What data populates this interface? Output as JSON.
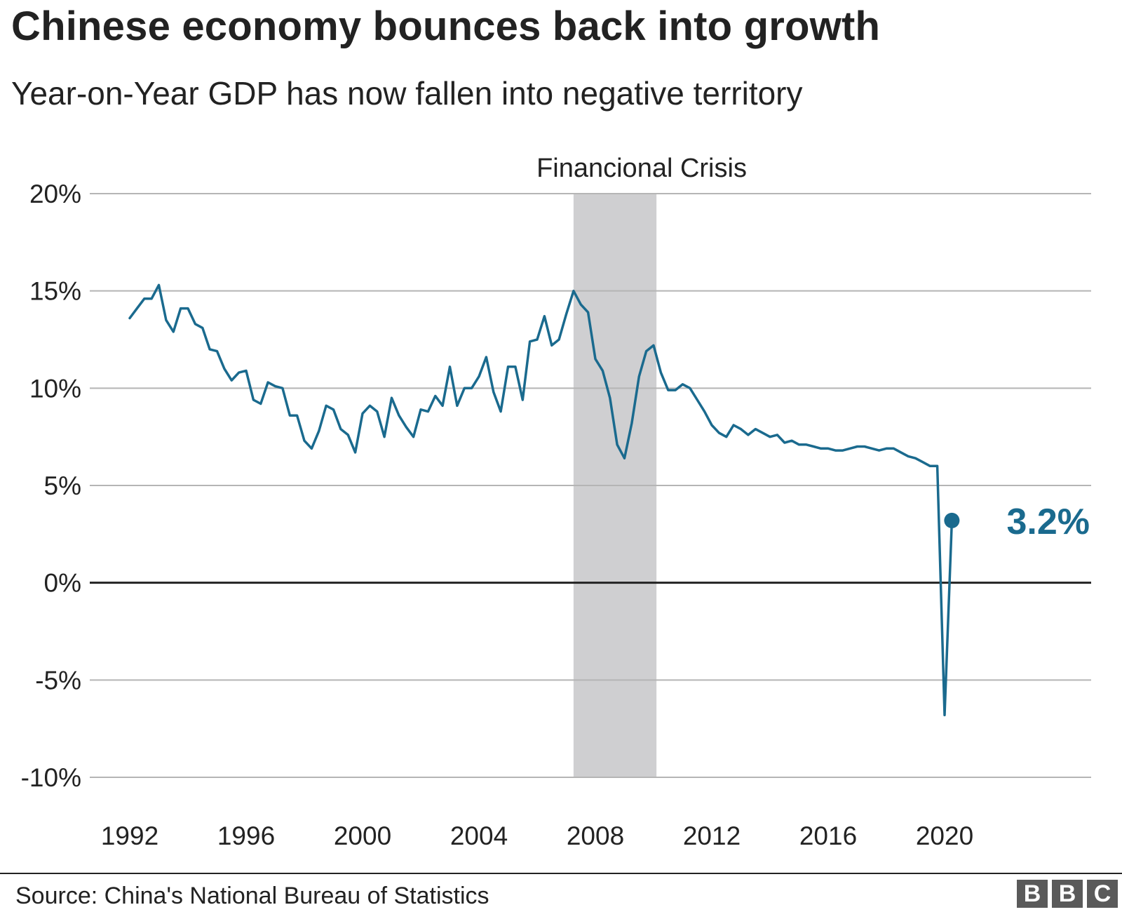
{
  "header": {
    "title": "Chinese economy bounces back into growth",
    "subtitle": "Year-on-Year GDP has now fallen into negative territory"
  },
  "footer": {
    "source": "Source: China's National Bureau of Statistics",
    "logo_letters": [
      "B",
      "B",
      "C"
    ]
  },
  "colors": {
    "line": "#1a6a8e",
    "grid": "#b5b5b5",
    "zero_line": "#222222",
    "band": "#cfcfd1",
    "text": "#222222"
  },
  "chart_data": {
    "type": "line",
    "title": "Chinese economy bounces back into growth",
    "subtitle": "Year-on-Year GDP has now fallen into negative territory",
    "xlabel": "",
    "ylabel": "",
    "ylim": [
      -10,
      20
    ],
    "xlim": [
      1991.25,
      2024.5
    ],
    "grid": true,
    "yticks": [
      20,
      15,
      10,
      5,
      0,
      -5,
      -10
    ],
    "ytick_labels": [
      "20%",
      "15%",
      "10%",
      "5%",
      "0%",
      "-5%",
      "-10%"
    ],
    "xticks": [
      1992,
      1996,
      2000,
      2004,
      2008,
      2012,
      2016,
      2020
    ],
    "xtick_labels": [
      "1992",
      "1996",
      "2000",
      "2004",
      "2008",
      "2012",
      "2016",
      "2020"
    ],
    "shaded_region": {
      "label": "Financional Crisis",
      "start": 2007.25,
      "end": 2010.1
    },
    "last_point_label": "3.2%",
    "series": [
      {
        "name": "Year-on-Year GDP growth",
        "x": [
          1992.0,
          1992.25,
          1992.5,
          1992.75,
          1993.0,
          1993.25,
          1993.5,
          1993.75,
          1994.0,
          1994.25,
          1994.5,
          1994.75,
          1995.0,
          1995.25,
          1995.5,
          1995.75,
          1996.0,
          1996.25,
          1996.5,
          1996.75,
          1997.0,
          1997.25,
          1997.5,
          1997.75,
          1998.0,
          1998.25,
          1998.5,
          1998.75,
          1999.0,
          1999.25,
          1999.5,
          1999.75,
          2000.0,
          2000.25,
          2000.5,
          2000.75,
          2001.0,
          2001.25,
          2001.5,
          2001.75,
          2002.0,
          2002.25,
          2002.5,
          2002.75,
          2003.0,
          2003.25,
          2003.5,
          2003.75,
          2004.0,
          2004.25,
          2004.5,
          2004.75,
          2005.0,
          2005.25,
          2005.5,
          2005.75,
          2006.0,
          2006.25,
          2006.5,
          2006.75,
          2007.0,
          2007.25,
          2007.5,
          2007.75,
          2008.0,
          2008.25,
          2008.5,
          2008.75,
          2009.0,
          2009.25,
          2009.5,
          2009.75,
          2010.0,
          2010.25,
          2010.5,
          2010.75,
          2011.0,
          2011.25,
          2011.5,
          2011.75,
          2012.0,
          2012.25,
          2012.5,
          2012.75,
          2013.0,
          2013.25,
          2013.5,
          2013.75,
          2014.0,
          2014.25,
          2014.5,
          2014.75,
          2015.0,
          2015.25,
          2015.5,
          2015.75,
          2016.0,
          2016.25,
          2016.5,
          2016.75,
          2017.0,
          2017.25,
          2017.5,
          2017.75,
          2018.0,
          2018.25,
          2018.5,
          2018.75,
          2019.0,
          2019.25,
          2019.5,
          2019.75,
          2020.0,
          2020.25
        ],
        "values": [
          13.6,
          14.1,
          14.6,
          14.6,
          15.3,
          13.5,
          12.9,
          14.1,
          14.1,
          13.3,
          13.1,
          12.0,
          11.9,
          11.0,
          10.4,
          10.8,
          10.9,
          9.4,
          9.2,
          10.3,
          10.1,
          10.0,
          8.6,
          8.6,
          7.3,
          6.9,
          7.8,
          9.1,
          8.9,
          7.9,
          7.6,
          6.7,
          8.7,
          9.1,
          8.8,
          7.5,
          9.5,
          8.6,
          8.0,
          7.5,
          8.9,
          8.8,
          9.6,
          9.1,
          11.1,
          9.1,
          10.0,
          10.0,
          10.6,
          11.6,
          9.8,
          8.8,
          11.1,
          11.1,
          9.4,
          12.4,
          12.5,
          13.7,
          12.2,
          12.5,
          13.8,
          15.0,
          14.3,
          13.9,
          11.5,
          10.9,
          9.5,
          7.1,
          6.4,
          8.2,
          10.6,
          11.9,
          12.2,
          10.8,
          9.9,
          9.9,
          10.2,
          10.0,
          9.4,
          8.8,
          8.1,
          7.7,
          7.5,
          8.1,
          7.9,
          7.6,
          7.9,
          7.7,
          7.5,
          7.6,
          7.2,
          7.3,
          7.1,
          7.1,
          7.0,
          6.9,
          6.9,
          6.8,
          6.8,
          6.9,
          7.0,
          7.0,
          6.9,
          6.8,
          6.9,
          6.9,
          6.7,
          6.5,
          6.4,
          6.2,
          6.0,
          6.0,
          -6.8,
          3.2
        ]
      }
    ]
  }
}
